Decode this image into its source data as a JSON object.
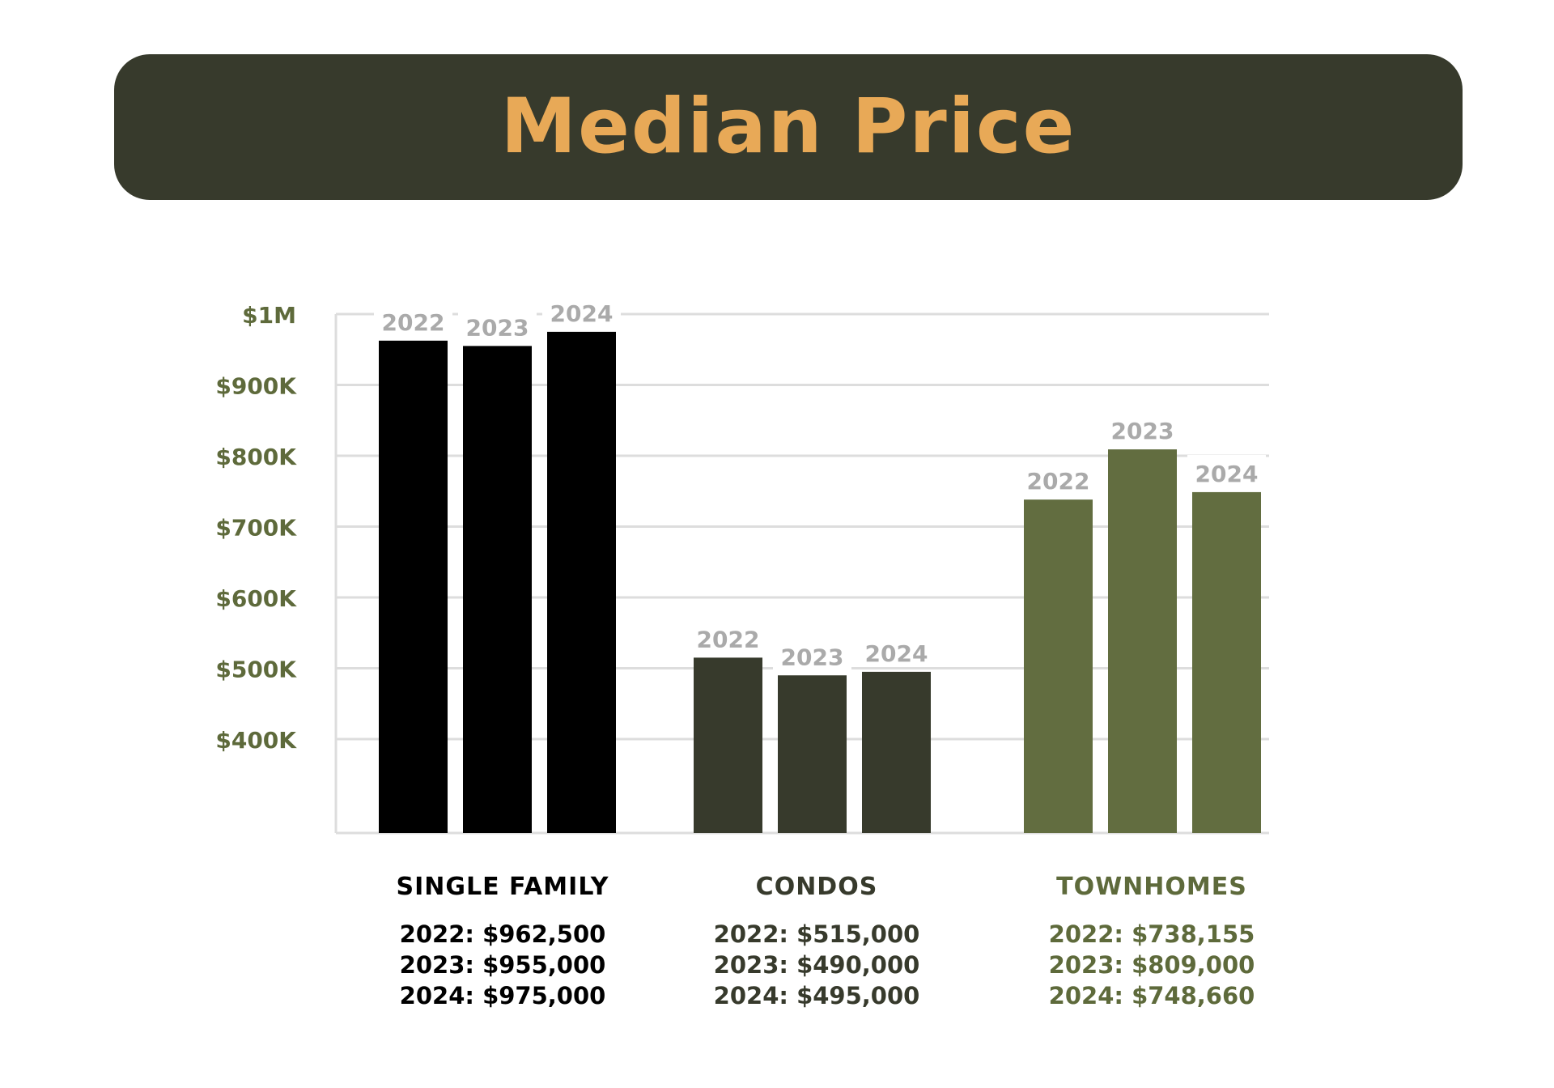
{
  "header": {
    "title": "Median Price"
  },
  "colors": {
    "header_bg": "#373a2c",
    "title": "#e8a957",
    "axis_label": "#5e6a3b",
    "gridline": "#dddddd",
    "year_label": "#aaaaaa"
  },
  "chart_data": {
    "type": "bar",
    "title": "Median Price",
    "xlabel": "",
    "ylabel": "",
    "ylim": [
      300000,
      1000000
    ],
    "yticks": [
      {
        "value": 1000000,
        "label": "$1M"
      },
      {
        "value": 900000,
        "label": "$900K"
      },
      {
        "value": 800000,
        "label": "$800K"
      },
      {
        "value": 700000,
        "label": "$700K"
      },
      {
        "value": 600000,
        "label": "$600K"
      },
      {
        "value": 500000,
        "label": "$500K"
      },
      {
        "value": 400000,
        "label": "$400K"
      }
    ],
    "grid": true,
    "categories": [
      "SINGLE FAMILY",
      "CONDOS",
      "TOWNHOMES"
    ],
    "category_colors": [
      "#000000",
      "#373a2c",
      "#626d40"
    ],
    "series": [
      {
        "name": "2022",
        "values": [
          962500,
          515000,
          738155
        ]
      },
      {
        "name": "2023",
        "values": [
          955000,
          490000,
          809000
        ]
      },
      {
        "name": "2024",
        "values": [
          975000,
          495000,
          748660
        ]
      }
    ]
  },
  "summaries": [
    {
      "name": "SINGLE FAMILY",
      "color": "#000000",
      "lines": [
        "2022: $962,500",
        "2023: $955,000",
        "2024: $975,000"
      ]
    },
    {
      "name": "CONDOS",
      "color": "#373a2c",
      "lines": [
        "2022: $515,000",
        "2023: $490,000",
        "2024: $495,000"
      ]
    },
    {
      "name": "TOWNHOMES",
      "color": "#5e6a3b",
      "lines": [
        "2022: $738,155",
        "2023: $809,000",
        "2024: $748,660"
      ]
    }
  ]
}
